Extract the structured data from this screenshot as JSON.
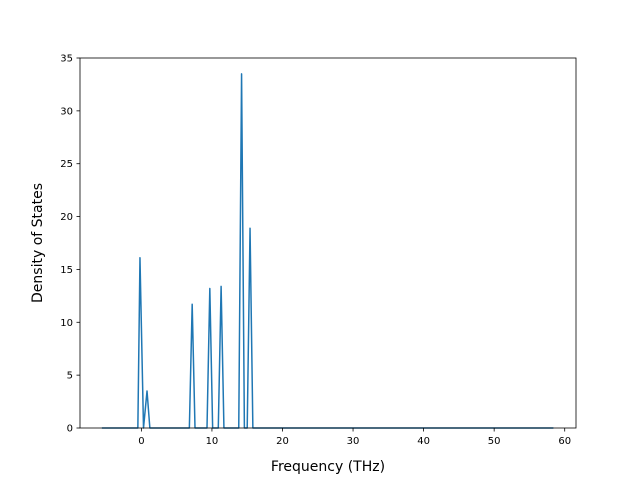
{
  "chart_data": {
    "type": "line",
    "title": "",
    "xlabel": "Frequency (THz)",
    "ylabel": "Density of States",
    "xlim": [
      -8.7,
      61.6
    ],
    "ylim": [
      0,
      35
    ],
    "xticks": [
      0,
      10,
      20,
      30,
      40,
      50,
      60
    ],
    "yticks": [
      0,
      5,
      10,
      15,
      20,
      25,
      30,
      35
    ],
    "xtick_labels": [
      "0",
      "10",
      "20",
      "30",
      "40",
      "50",
      "60"
    ],
    "ytick_labels": [
      "0",
      "5",
      "10",
      "15",
      "20",
      "25",
      "30",
      "35"
    ],
    "grid": false,
    "legend": "none",
    "series_color": "#1f77b4",
    "series": [
      {
        "x": [
          -5.6,
          -0.5,
          -0.2,
          0.3,
          0.8,
          1.2,
          6.8,
          7.2,
          7.6,
          9.3,
          9.7,
          10.1,
          10.9,
          11.3,
          11.7,
          13.8,
          14.2,
          14.6,
          15.0,
          15.4,
          15.8,
          58.4
        ],
        "y": [
          0,
          0,
          16.1,
          0,
          3.5,
          0,
          0,
          11.7,
          0,
          0,
          13.2,
          0,
          0,
          13.4,
          0,
          0,
          33.5,
          0,
          0,
          18.9,
          0,
          0
        ]
      }
    ]
  }
}
